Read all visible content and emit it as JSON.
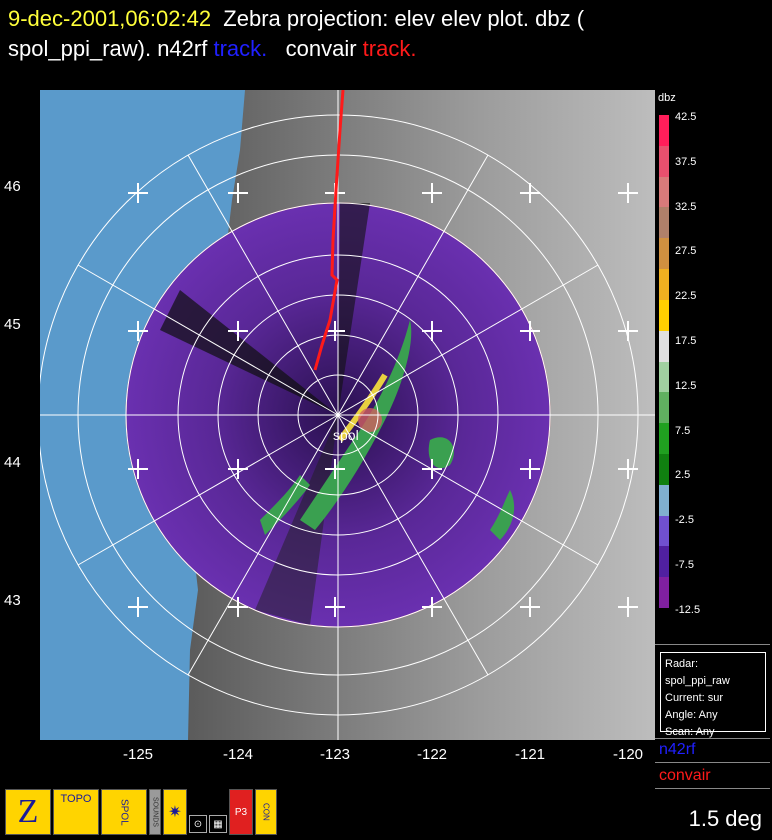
{
  "title": {
    "datetime": "9-dec-2001,06:02:42",
    "line1_rest": "Zebra projection: elev elev  plot.  dbz (",
    "line2_prefix": "spol_ppi_raw).   n42rf",
    "track1": "track.",
    "mid": "convair",
    "track2": "track."
  },
  "map": {
    "radar_label": "spol",
    "lat_labels": [
      "46",
      "45",
      "44",
      "43"
    ],
    "lon_labels": [
      "-125",
      "-124",
      "-123",
      "-122",
      "-121",
      "-120"
    ]
  },
  "colorbar": {
    "title": "dbz",
    "labels": [
      "42.5",
      "37.5",
      "32.5",
      "27.5",
      "22.5",
      "17.5",
      "12.5",
      "7.5",
      "2.5",
      "-2.5",
      "-7.5",
      "-12.5"
    ],
    "colors": [
      "#ff1e5a",
      "#e8506e",
      "#d87a7a",
      "#b0806a",
      "#d09040",
      "#f0b020",
      "#ffd000",
      "#e0e0e0",
      "#a0d0a0",
      "#60b060",
      "#20a020",
      "#108010",
      "#80b0d0",
      "#7050d0",
      "#5020a0",
      "#8020a0"
    ]
  },
  "status_box": {
    "radar": "Radar: spol_ppi_raw",
    "current": "Current: sur",
    "angle": "Angle: Any",
    "scan": "Scan: Any"
  },
  "legend": {
    "n42rf": "n42rf",
    "convair": "convair"
  },
  "icons": [
    "Z",
    "TOPO",
    "SPOL",
    "SOUNDS",
    "wheel",
    "circle",
    "grid",
    "P3",
    "CON"
  ],
  "elevation": "1.5 deg",
  "colors": {
    "title_yellow": "#ffff3a",
    "track_blue": "#2020ff",
    "track_red": "#ff1a1a",
    "ocean": "#5a9acb"
  }
}
